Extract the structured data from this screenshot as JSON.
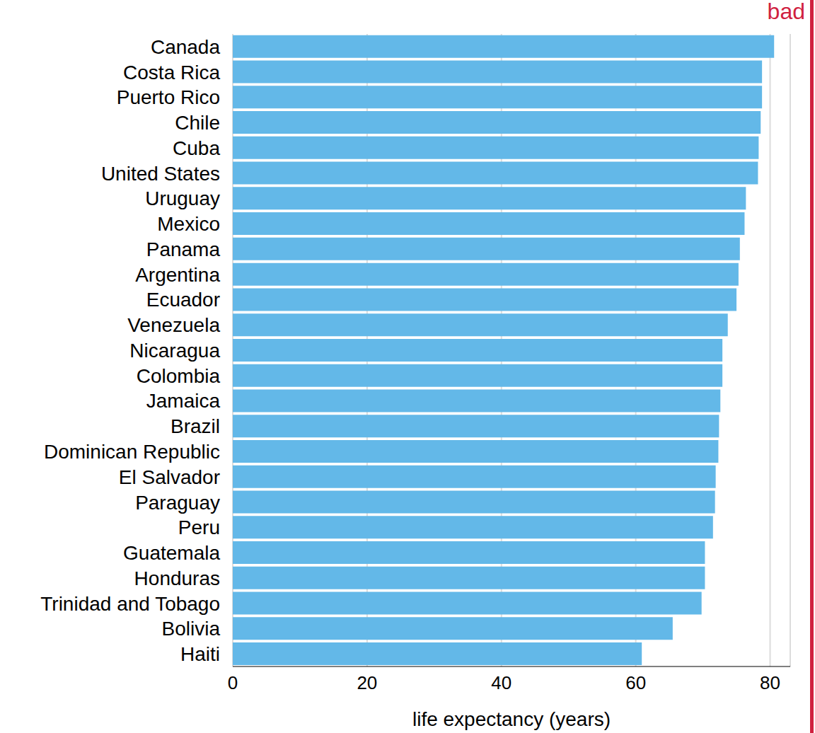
{
  "chart_data": {
    "type": "bar",
    "orientation": "horizontal",
    "xlabel": "life expectancy (years)",
    "annotation": "bad",
    "categories": [
      "Canada",
      "Costa Rica",
      "Puerto Rico",
      "Chile",
      "Cuba",
      "United States",
      "Uruguay",
      "Mexico",
      "Panama",
      "Argentina",
      "Ecuador",
      "Venezuela",
      "Nicaragua",
      "Colombia",
      "Jamaica",
      "Brazil",
      "Dominican Republic",
      "El Salvador",
      "Paraguay",
      "Peru",
      "Guatemala",
      "Honduras",
      "Trinidad and Tobago",
      "Bolivia",
      "Haiti"
    ],
    "values": [
      80.6,
      78.8,
      78.8,
      78.6,
      78.3,
      78.2,
      76.4,
      76.2,
      75.5,
      75.3,
      75.0,
      73.7,
      72.9,
      72.9,
      72.6,
      72.4,
      72.3,
      71.9,
      71.8,
      71.5,
      70.3,
      70.3,
      69.8,
      65.5,
      60.9
    ],
    "color": "#63b8e8",
    "xlim": [
      0,
      83
    ],
    "xticks": [
      0,
      20,
      40,
      60,
      80
    ],
    "grid": true
  }
}
